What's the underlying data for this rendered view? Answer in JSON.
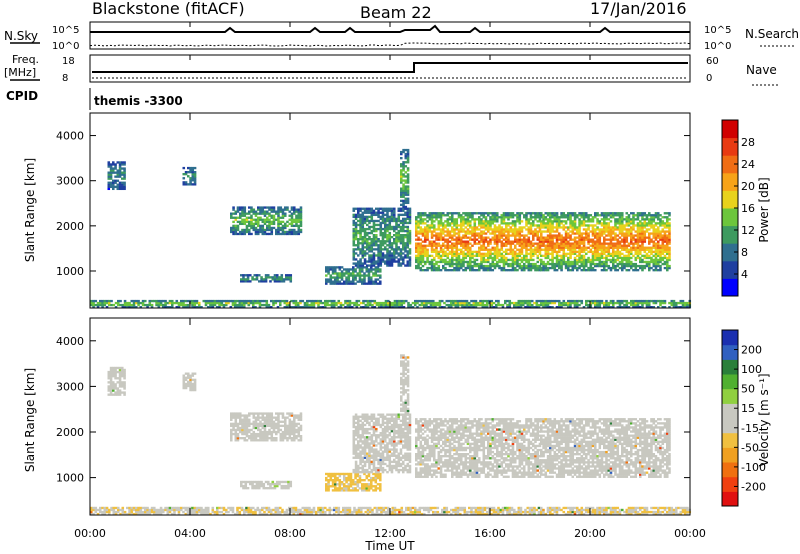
{
  "header": {
    "station": "Blackstone (fitACF)",
    "beam": "Beam 22",
    "date": "17/Jan/2016"
  },
  "side_labels": {
    "nsky": "N.Sky",
    "nsearch": "N.Search",
    "freq": "Freq.",
    "mhz": "[MHz]",
    "nave": "Nave",
    "cpid": "CPID",
    "cpid_value": "themis -3300"
  },
  "scale_labels": {
    "noise_top_left": "10^5",
    "noise_bottom_left": "10^0",
    "noise_top_right": "10^5",
    "noise_bottom_right": "10^0",
    "freq_top": "18",
    "freq_bottom": "8",
    "nave_top": "60",
    "nave_bottom": "0"
  },
  "colors": {
    "power_scale": [
      "#0000ff",
      "#1f3fa0",
      "#2f6f8f",
      "#3d9a5f",
      "#6cc63c",
      "#e8d21c",
      "#f7a318",
      "#f06d14",
      "#e83a12",
      "#d00000"
    ],
    "velocity_scale": [
      "#e01010",
      "#f04010",
      "#f07010",
      "#f0a020",
      "#f0c040",
      "#c8c8c0",
      "#c8c8c0",
      "#90d040",
      "#50b030",
      "#2a7f3a",
      "#3060c0",
      "#1a2fb0"
    ]
  },
  "chart_data": [
    {
      "type": "heatmap",
      "title": "",
      "xlabel": "Time UT",
      "ylabel": "Slant Range [km]",
      "colorbar_label": "Power [dB]",
      "x_ticks": [
        "00:00",
        "04:00",
        "08:00",
        "12:00",
        "16:00",
        "20:00",
        "00:00"
      ],
      "y_ticks": [
        "1000",
        "2000",
        "3000",
        "4000"
      ],
      "colorbar_ticks": [
        "4",
        "8",
        "12",
        "16",
        "20",
        "24",
        "28"
      ],
      "xlim": [
        0,
        24
      ],
      "ylim": [
        180,
        4500
      ],
      "clim": [
        0,
        32
      ],
      "regions": [
        {
          "t0": 0.7,
          "t1": 1.4,
          "r0": 2800,
          "r1": 3400,
          "p": 3
        },
        {
          "t0": 3.7,
          "t1": 4.2,
          "r0": 2900,
          "r1": 3300,
          "p": 3
        },
        {
          "t0": 5.6,
          "t1": 8.4,
          "r0": 1800,
          "r1": 2400,
          "p": 5
        },
        {
          "t0": 6.0,
          "t1": 8.0,
          "r0": 750,
          "r1": 900,
          "p": 4
        },
        {
          "t0": 9.4,
          "t1": 11.6,
          "r0": 700,
          "r1": 1100,
          "p": 4
        },
        {
          "t0": 10.5,
          "t1": 12.8,
          "r0": 1100,
          "r1": 2400,
          "p": 4
        },
        {
          "t0": 12.4,
          "t1": 12.7,
          "r0": 2400,
          "r1": 3700,
          "p": 5
        },
        {
          "t0": 13.0,
          "t1": 18.0,
          "r0": 1000,
          "r1": 2300,
          "p": 10
        },
        {
          "t0": 18.0,
          "t1": 23.2,
          "r0": 1000,
          "r1": 2300,
          "p": 10
        },
        {
          "t0": 0.0,
          "t1": 24.0,
          "r0": 180,
          "r1": 330,
          "p": 6
        }
      ]
    },
    {
      "type": "heatmap",
      "title": "",
      "xlabel": "Time UT",
      "ylabel": "Slant Range [km]",
      "colorbar_label": "Velocity [m s⁻¹]",
      "x_ticks": [
        "00:00",
        "04:00",
        "08:00",
        "12:00",
        "16:00",
        "20:00",
        "00:00"
      ],
      "y_ticks": [
        "1000",
        "2000",
        "3000",
        "4000"
      ],
      "colorbar_ticks": [
        "-200",
        "-100",
        "-50",
        "-15",
        "15",
        "50",
        "100",
        "200"
      ],
      "xlim": [
        0,
        24
      ],
      "ylim": [
        180,
        4500
      ],
      "clim": [
        -250,
        250
      ],
      "regions": [
        {
          "t0": 0.7,
          "t1": 1.4,
          "r0": 2800,
          "r1": 3400,
          "v": 0
        },
        {
          "t0": 3.7,
          "t1": 4.2,
          "r0": 2900,
          "r1": 3300,
          "v": 0
        },
        {
          "t0": 5.6,
          "t1": 8.4,
          "r0": 1800,
          "r1": 2400,
          "v": 0
        },
        {
          "t0": 6.0,
          "t1": 8.0,
          "r0": 750,
          "r1": 900,
          "v": 30
        },
        {
          "t0": 9.4,
          "t1": 11.6,
          "r0": 700,
          "r1": 1100,
          "v": -60
        },
        {
          "t0": 10.5,
          "t1": 12.8,
          "r0": 1100,
          "r1": 2400,
          "v": 0
        },
        {
          "t0": 12.4,
          "t1": 12.7,
          "r0": 2400,
          "r1": 3700,
          "v": 0
        },
        {
          "t0": 13.0,
          "t1": 18.0,
          "r0": 1000,
          "r1": 2300,
          "v": 0
        },
        {
          "t0": 18.0,
          "t1": 23.2,
          "r0": 1000,
          "r1": 2300,
          "v": 0
        },
        {
          "t0": 0.0,
          "t1": 24.0,
          "r0": 180,
          "r1": 330,
          "v": -40
        }
      ]
    }
  ]
}
